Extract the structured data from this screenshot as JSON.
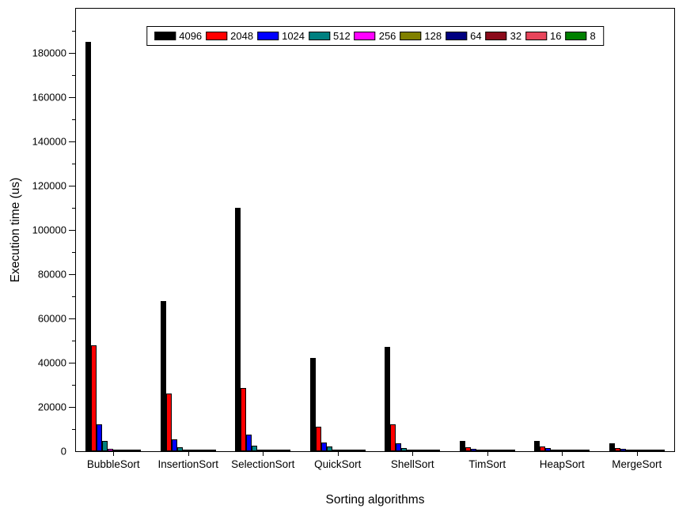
{
  "chart_data": {
    "type": "bar",
    "title": "",
    "xlabel": "Sorting algorithms",
    "ylabel": "Execution time (us)",
    "ylim": [
      0,
      200000
    ],
    "ytick_interval": 20000,
    "ytick_minor_interval": 10000,
    "yticks": [
      0,
      20000,
      40000,
      60000,
      80000,
      100000,
      120000,
      140000,
      160000,
      180000
    ],
    "grid": false,
    "legend_position": "top-center-inside",
    "categories": [
      "BubbleSort",
      "InsertionSort",
      "SelectionSort",
      "QuickSort",
      "ShellSort",
      "TimSort",
      "HeapSort",
      "MergeSort"
    ],
    "series": [
      {
        "name": "4096",
        "color": "#000000",
        "values": [
          185000,
          68000,
          110000,
          42000,
          47000,
          4500,
          4600,
          3600
        ]
      },
      {
        "name": "2048",
        "color": "#ff0000",
        "values": [
          48000,
          26000,
          28500,
          11000,
          12300,
          1800,
          2300,
          1600
        ]
      },
      {
        "name": "1024",
        "color": "#0000ff",
        "values": [
          12300,
          5500,
          7600,
          3800,
          3600,
          1000,
          1500,
          900
        ]
      },
      {
        "name": "512",
        "color": "#008080",
        "values": [
          4500,
          1800,
          2500,
          2000,
          1400,
          500,
          650,
          420
        ]
      },
      {
        "name": "256",
        "color": "#ff00ff",
        "values": [
          1200,
          600,
          800,
          650,
          480,
          240,
          310,
          200
        ]
      },
      {
        "name": "128",
        "color": "#808000",
        "values": [
          420,
          230,
          280,
          260,
          200,
          120,
          150,
          100
        ]
      },
      {
        "name": "64",
        "color": "#000080",
        "values": [
          160,
          90,
          110,
          120,
          95,
          60,
          75,
          50
        ]
      },
      {
        "name": "32",
        "color": "#8b0a1a",
        "values": [
          80,
          45,
          55,
          60,
          48,
          30,
          38,
          25
        ]
      },
      {
        "name": "16",
        "color": "#e8455b",
        "values": [
          40,
          22,
          28,
          30,
          24,
          15,
          19,
          13
        ]
      },
      {
        "name": "8",
        "color": "#008000",
        "values": [
          20,
          11,
          14,
          15,
          12,
          8,
          10,
          6
        ]
      }
    ]
  }
}
